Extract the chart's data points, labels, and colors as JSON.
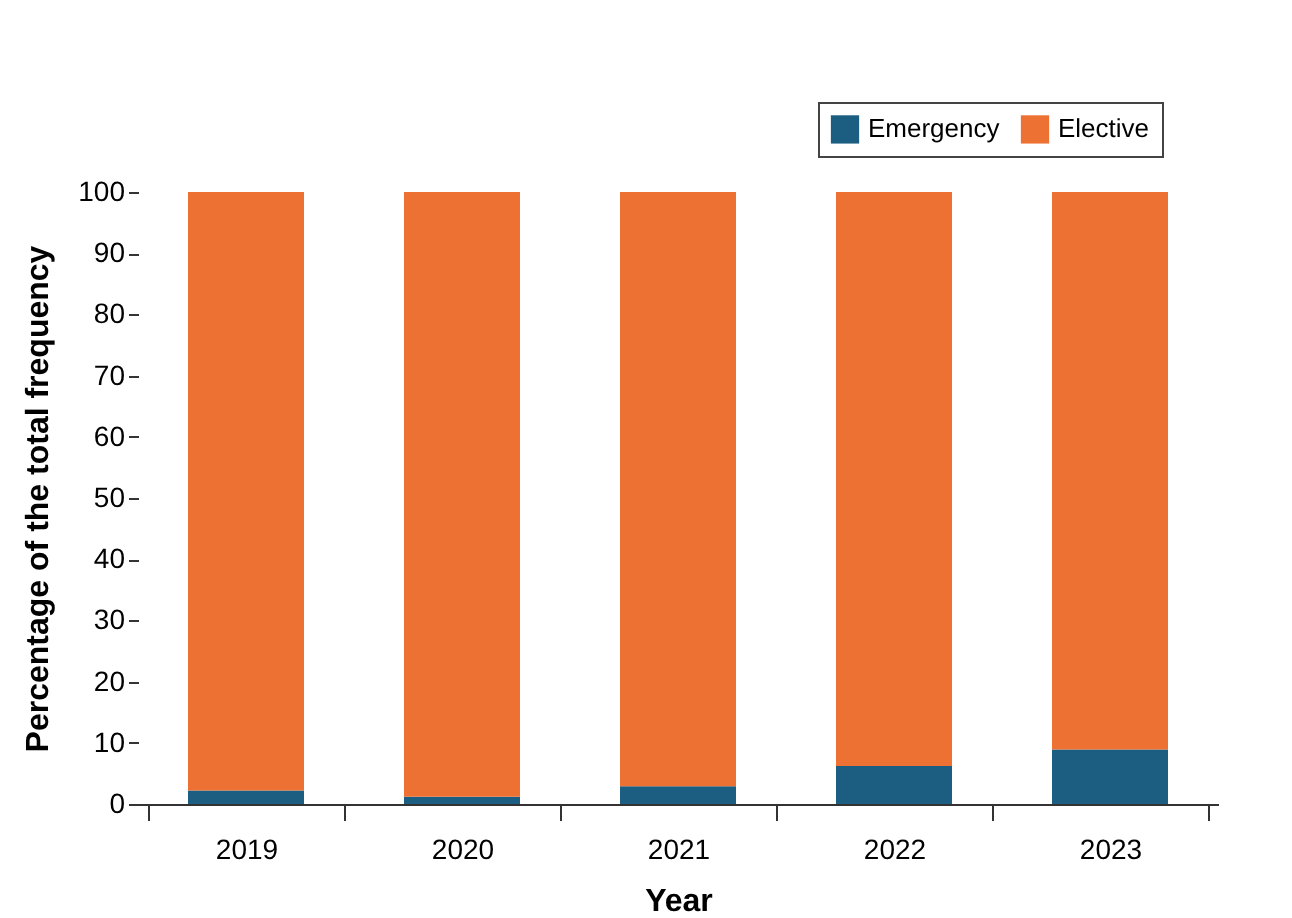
{
  "chart_data": {
    "type": "bar",
    "stacked": true,
    "xlabel": "Year",
    "ylabel": "Percentage of the total frequency",
    "categories": [
      "2019",
      "2020",
      "2021",
      "2022",
      "2023"
    ],
    "series": [
      {
        "name": "Emergency",
        "color": "#1b5e82",
        "values": [
          2.2,
          1.2,
          2.9,
          6.2,
          8.9
        ]
      },
      {
        "name": "Elective",
        "color": "#ec7133",
        "values": [
          97.8,
          98.8,
          97.1,
          93.8,
          91.1
        ]
      }
    ],
    "ylim": [
      0,
      100
    ],
    "yticks": [
      0,
      10,
      20,
      30,
      40,
      50,
      60,
      70,
      80,
      90,
      100
    ],
    "grid": false,
    "legend": "top right"
  }
}
